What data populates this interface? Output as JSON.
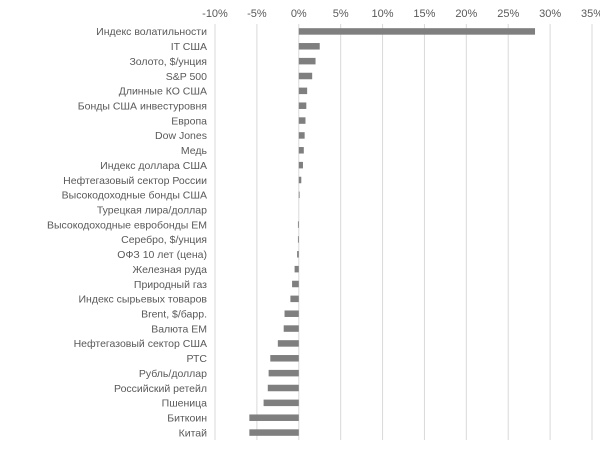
{
  "chart_data": {
    "type": "bar",
    "orientation": "horizontal",
    "title": "",
    "xlabel": "",
    "ylabel": "",
    "xlim": [
      -10,
      35
    ],
    "x_ticks": [
      -10,
      -5,
      0,
      5,
      10,
      15,
      20,
      25,
      30,
      35
    ],
    "x_tick_labels": [
      "-10%",
      "-5%",
      "0%",
      "5%",
      "10%",
      "15%",
      "20%",
      "25%",
      "30%",
      "35%"
    ],
    "axis_position": "top",
    "grid": true,
    "legend": false,
    "bar_color": "#7f7f7f",
    "categories": [
      "Индекс волатильности",
      "IT США",
      "Золото, $/унция",
      "S&P 500",
      "Длинные КО США",
      "Бонды США инвестуровня",
      "Европа",
      "Dow Jones",
      "Медь",
      "Индекс доллара США",
      "Нефтегазовый сектор России",
      "Высокодоходные бонды США",
      "Турецкая лира/доллар",
      "Высокодоходные евробонды ЕМ",
      "Серебро, $/унция",
      "ОФЗ 10 лет (цена)",
      "Железная руда",
      "Природный газ",
      "Индекс сырьевых товаров",
      "Brent, $/барр.",
      "Валюта ЕМ",
      "Нефтегазовый сектор США",
      "РТС",
      "Рубль/доллар",
      "Российский ретейл",
      "Пшеница",
      "Биткоин",
      "Китай"
    ],
    "values": [
      28.2,
      2.5,
      2.0,
      1.6,
      1.0,
      0.9,
      0.8,
      0.7,
      0.6,
      0.5,
      0.3,
      0.1,
      0.0,
      -0.1,
      -0.1,
      -0.2,
      -0.5,
      -0.8,
      -1.0,
      -1.7,
      -1.8,
      -2.5,
      -3.4,
      -3.6,
      -3.7,
      -4.2,
      -5.9,
      -5.9
    ]
  }
}
